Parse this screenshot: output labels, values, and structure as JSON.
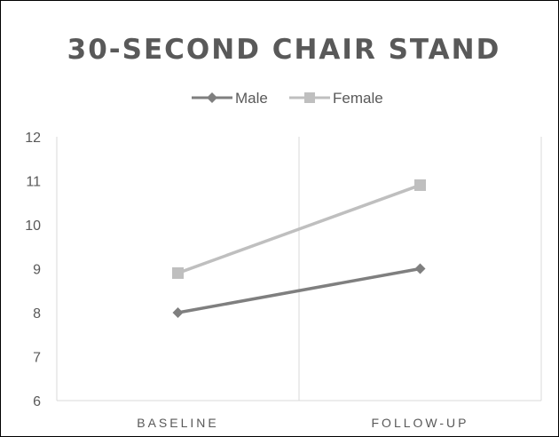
{
  "chart_data": {
    "type": "line",
    "title": "30-SECOND CHAIR STAND",
    "categories": [
      "BASELINE",
      "FOLLOW-UP"
    ],
    "series": [
      {
        "name": "Male",
        "values": [
          8,
          9
        ],
        "color": "#7f7f7f",
        "marker": "diamond"
      },
      {
        "name": "Female",
        "values": [
          8.9,
          10.9
        ],
        "color": "#bfbfbf",
        "marker": "square"
      }
    ],
    "ylim": [
      6,
      12
    ],
    "yticks": [
      "6",
      "7",
      "8",
      "9",
      "10",
      "11",
      "12"
    ],
    "legend_position": "top",
    "grid": "vertical",
    "gridline_color": "#d9d9d9"
  }
}
